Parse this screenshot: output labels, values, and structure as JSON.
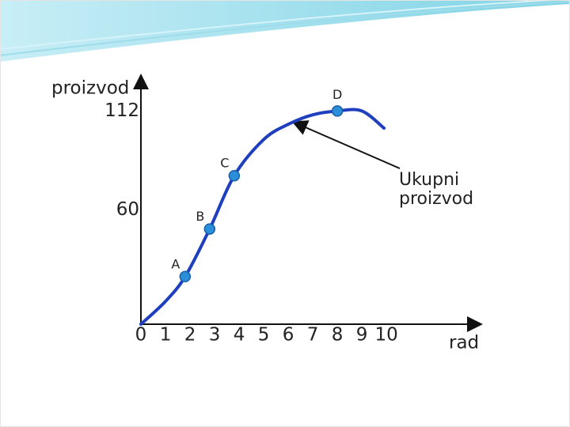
{
  "chart_data": {
    "type": "line",
    "x_label": "rad",
    "y_label": "proizvod",
    "x": [
      0,
      1,
      1.8,
      2.8,
      3.8,
      5,
      6,
      7,
      8,
      9,
      9.9
    ],
    "series": [
      {
        "color": "#1f3fbf",
        "values": [
          0,
          12,
          25,
          50,
          78,
          97,
          105,
          110,
          112,
          112,
          103
        ]
      }
    ],
    "points": [
      {
        "label": "A",
        "x": 1.8,
        "y": 25
      },
      {
        "label": "B",
        "x": 2.8,
        "y": 50
      },
      {
        "label": "C",
        "x": 3.8,
        "y": 78
      },
      {
        "label": "D",
        "x": 8,
        "y": 112
      }
    ],
    "point_color": "#2a8fd8",
    "annotation": "Ukupni proizvod",
    "xlim": [
      0,
      13.8
    ],
    "xticks": [
      0,
      1,
      2,
      3,
      4,
      5,
      6,
      7,
      8,
      9,
      10
    ],
    "ylim": [
      0,
      130
    ],
    "yticks": [
      60,
      112
    ]
  }
}
